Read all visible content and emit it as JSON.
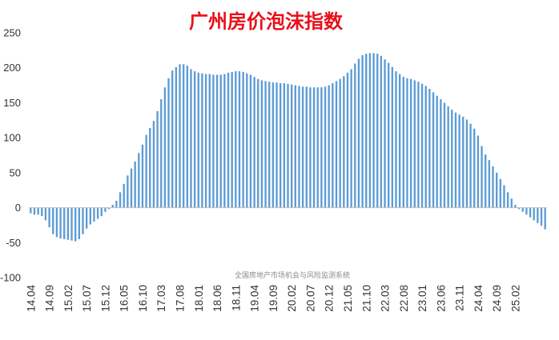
{
  "chart_data": {
    "type": "bar",
    "title": "广州房价泡沫指数",
    "watermark": "全国房地产市场机会与风险监测系统",
    "xlabel": "",
    "ylabel": "",
    "ylim": [
      -100,
      250
    ],
    "yticks": [
      -100,
      -50,
      0,
      50,
      100,
      150,
      200,
      250
    ],
    "xtick_labels": [
      "14.04",
      "14.09",
      "15.02",
      "15.07",
      "15.12",
      "16.05",
      "16.10",
      "17.03",
      "17.08",
      "18.01",
      "18.06",
      "18.11",
      "19.04",
      "19.09",
      "20.02",
      "20.07",
      "20.12",
      "21.05",
      "21.10",
      "22.03",
      "22.08",
      "23.01",
      "23.06",
      "23.11",
      "24.04",
      "24.09",
      "25.02"
    ],
    "bar_color": "#5b9bd5",
    "grid": false,
    "series": [
      {
        "start": "2014-04",
        "values": [
          -8,
          -10,
          -10,
          -12,
          -18,
          -28,
          -38,
          -42,
          -44,
          -45,
          -46,
          -47,
          -48,
          -45,
          -38,
          -30,
          -24,
          -20,
          -16,
          -12,
          -6,
          -2,
          4,
          10,
          22,
          34,
          46,
          56,
          66,
          78,
          90,
          104,
          114,
          124,
          138,
          155,
          172,
          185,
          196,
          201,
          205,
          205,
          203,
          198,
          195,
          193,
          192,
          191,
          191,
          190,
          190,
          190,
          191,
          193,
          194,
          195,
          195,
          194,
          192,
          190,
          187,
          184,
          182,
          181,
          180,
          179,
          179,
          178,
          178,
          177,
          176,
          175,
          174,
          173,
          173,
          172,
          172,
          172,
          172,
          173,
          175,
          178,
          181,
          184,
          188,
          193,
          198,
          206,
          213,
          218,
          220,
          221,
          221,
          220,
          217,
          212,
          207,
          201,
          195,
          191,
          187,
          185,
          184,
          182,
          180,
          177,
          174,
          170,
          165,
          160,
          155,
          150,
          145,
          140,
          136,
          133,
          130,
          126,
          120,
          113,
          103,
          88,
          76,
          68,
          59,
          50,
          41,
          32,
          22,
          13,
          4,
          -2,
          -6,
          -10,
          -14,
          -18,
          -22,
          -26,
          -31
        ]
      }
    ]
  }
}
